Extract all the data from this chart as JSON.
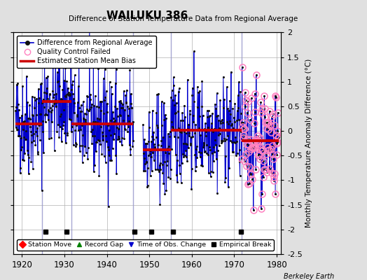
{
  "title": "WAILUKU 386",
  "subtitle": "Difference of Station Temperature Data from Regional Average",
  "ylabel": "Monthly Temperature Anomaly Difference (°C)",
  "xlabel_years": [
    1920,
    1930,
    1940,
    1950,
    1960,
    1970,
    1980
  ],
  "xlim": [
    1918,
    1981
  ],
  "ylim": [
    -2.5,
    2.0
  ],
  "yticks_left": [
    -2.0,
    -1.5,
    -1.0,
    -0.5,
    0.0,
    0.5,
    1.0,
    1.5,
    2.0
  ],
  "yticks_right": [
    -2.5,
    -2.0,
    -1.5,
    -1.0,
    -0.5,
    0.0,
    0.5,
    1.0,
    1.5,
    2.0
  ],
  "ytick_labels_right": [
    "-2.5",
    "-2",
    "-1.5",
    "-1",
    "-0.5",
    "0",
    "0.5",
    "1",
    "1.5",
    "2"
  ],
  "background_color": "#e0e0e0",
  "plot_bg_color": "#ffffff",
  "grid_color": "#b0b0b0",
  "seed": 42,
  "segments": [
    {
      "x_start": 1918.5,
      "x_end": 1925.0,
      "bias": 0.15
    },
    {
      "x_start": 1925.0,
      "x_end": 1932.0,
      "bias": 0.6
    },
    {
      "x_start": 1932.0,
      "x_end": 1946.3,
      "bias": 0.15
    },
    {
      "x_start": 1948.5,
      "x_end": 1955.0,
      "bias": -0.38
    },
    {
      "x_start": 1955.0,
      "x_end": 1972.0,
      "bias": 0.02
    },
    {
      "x_start": 1972.0,
      "x_end": 1980.5,
      "bias": -0.2
    }
  ],
  "bias_segments": [
    {
      "x_start": 1918.5,
      "x_end": 1924.7,
      "bias": 0.15
    },
    {
      "x_start": 1924.7,
      "x_end": 1931.7,
      "bias": 0.6
    },
    {
      "x_start": 1931.7,
      "x_end": 1946.1,
      "bias": 0.15
    },
    {
      "x_start": 1948.5,
      "x_end": 1955.0,
      "bias": -0.38
    },
    {
      "x_start": 1955.0,
      "x_end": 1965.0,
      "bias": 0.02
    },
    {
      "x_start": 1965.0,
      "x_end": 1971.7,
      "bias": 0.02
    },
    {
      "x_start": 1971.7,
      "x_end": 1980.5,
      "bias": -0.2
    }
  ],
  "vertical_lines": [
    1924.7,
    1931.7,
    1946.1,
    1955.0,
    1971.7
  ],
  "empirical_breaks": [
    1925.5,
    1930.5,
    1946.5,
    1950.5,
    1955.5,
    1971.5
  ],
  "qc_fail_start": 1971.7,
  "line_color": "#0000cc",
  "bias_color": "#cc0000",
  "qc_color": "#ff80c0",
  "vline_color": "#9999cc",
  "marker_color": "#111111",
  "noise_std": 0.52,
  "berkeley_earth_text": "Berkeley Earth"
}
